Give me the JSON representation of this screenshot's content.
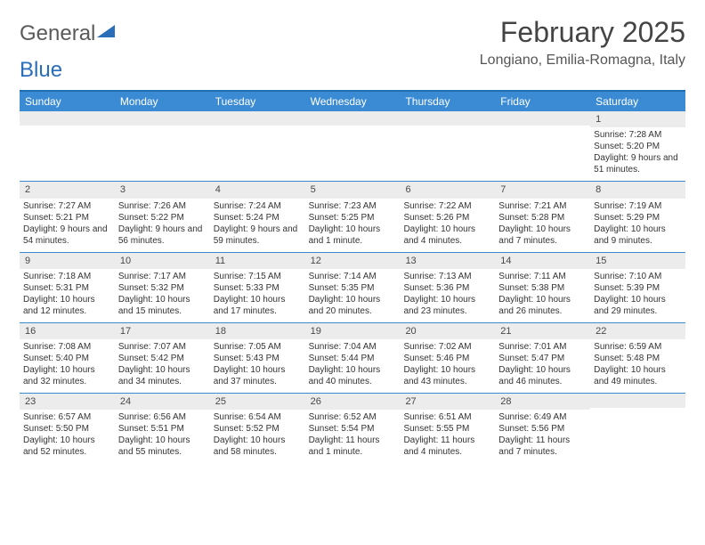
{
  "logo": {
    "text_general": "General",
    "text_blue": "Blue"
  },
  "title": "February 2025",
  "location": "Longiano, Emilia-Romagna, Italy",
  "colors": {
    "header_bar": "#3b8bd4",
    "header_border": "#1f6fb2",
    "daynum_bg": "#ececec",
    "text": "#333333",
    "logo_gray": "#5a5a5a",
    "logo_blue": "#2a6db8"
  },
  "day_headers": [
    "Sunday",
    "Monday",
    "Tuesday",
    "Wednesday",
    "Thursday",
    "Friday",
    "Saturday"
  ],
  "weeks": [
    [
      {
        "n": "",
        "sun": "",
        "set": "",
        "day": ""
      },
      {
        "n": "",
        "sun": "",
        "set": "",
        "day": ""
      },
      {
        "n": "",
        "sun": "",
        "set": "",
        "day": ""
      },
      {
        "n": "",
        "sun": "",
        "set": "",
        "day": ""
      },
      {
        "n": "",
        "sun": "",
        "set": "",
        "day": ""
      },
      {
        "n": "",
        "sun": "",
        "set": "",
        "day": ""
      },
      {
        "n": "1",
        "sun": "Sunrise: 7:28 AM",
        "set": "Sunset: 5:20 PM",
        "day": "Daylight: 9 hours and 51 minutes."
      }
    ],
    [
      {
        "n": "2",
        "sun": "Sunrise: 7:27 AM",
        "set": "Sunset: 5:21 PM",
        "day": "Daylight: 9 hours and 54 minutes."
      },
      {
        "n": "3",
        "sun": "Sunrise: 7:26 AM",
        "set": "Sunset: 5:22 PM",
        "day": "Daylight: 9 hours and 56 minutes."
      },
      {
        "n": "4",
        "sun": "Sunrise: 7:24 AM",
        "set": "Sunset: 5:24 PM",
        "day": "Daylight: 9 hours and 59 minutes."
      },
      {
        "n": "5",
        "sun": "Sunrise: 7:23 AM",
        "set": "Sunset: 5:25 PM",
        "day": "Daylight: 10 hours and 1 minute."
      },
      {
        "n": "6",
        "sun": "Sunrise: 7:22 AM",
        "set": "Sunset: 5:26 PM",
        "day": "Daylight: 10 hours and 4 minutes."
      },
      {
        "n": "7",
        "sun": "Sunrise: 7:21 AM",
        "set": "Sunset: 5:28 PM",
        "day": "Daylight: 10 hours and 7 minutes."
      },
      {
        "n": "8",
        "sun": "Sunrise: 7:19 AM",
        "set": "Sunset: 5:29 PM",
        "day": "Daylight: 10 hours and 9 minutes."
      }
    ],
    [
      {
        "n": "9",
        "sun": "Sunrise: 7:18 AM",
        "set": "Sunset: 5:31 PM",
        "day": "Daylight: 10 hours and 12 minutes."
      },
      {
        "n": "10",
        "sun": "Sunrise: 7:17 AM",
        "set": "Sunset: 5:32 PM",
        "day": "Daylight: 10 hours and 15 minutes."
      },
      {
        "n": "11",
        "sun": "Sunrise: 7:15 AM",
        "set": "Sunset: 5:33 PM",
        "day": "Daylight: 10 hours and 17 minutes."
      },
      {
        "n": "12",
        "sun": "Sunrise: 7:14 AM",
        "set": "Sunset: 5:35 PM",
        "day": "Daylight: 10 hours and 20 minutes."
      },
      {
        "n": "13",
        "sun": "Sunrise: 7:13 AM",
        "set": "Sunset: 5:36 PM",
        "day": "Daylight: 10 hours and 23 minutes."
      },
      {
        "n": "14",
        "sun": "Sunrise: 7:11 AM",
        "set": "Sunset: 5:38 PM",
        "day": "Daylight: 10 hours and 26 minutes."
      },
      {
        "n": "15",
        "sun": "Sunrise: 7:10 AM",
        "set": "Sunset: 5:39 PM",
        "day": "Daylight: 10 hours and 29 minutes."
      }
    ],
    [
      {
        "n": "16",
        "sun": "Sunrise: 7:08 AM",
        "set": "Sunset: 5:40 PM",
        "day": "Daylight: 10 hours and 32 minutes."
      },
      {
        "n": "17",
        "sun": "Sunrise: 7:07 AM",
        "set": "Sunset: 5:42 PM",
        "day": "Daylight: 10 hours and 34 minutes."
      },
      {
        "n": "18",
        "sun": "Sunrise: 7:05 AM",
        "set": "Sunset: 5:43 PM",
        "day": "Daylight: 10 hours and 37 minutes."
      },
      {
        "n": "19",
        "sun": "Sunrise: 7:04 AM",
        "set": "Sunset: 5:44 PM",
        "day": "Daylight: 10 hours and 40 minutes."
      },
      {
        "n": "20",
        "sun": "Sunrise: 7:02 AM",
        "set": "Sunset: 5:46 PM",
        "day": "Daylight: 10 hours and 43 minutes."
      },
      {
        "n": "21",
        "sun": "Sunrise: 7:01 AM",
        "set": "Sunset: 5:47 PM",
        "day": "Daylight: 10 hours and 46 minutes."
      },
      {
        "n": "22",
        "sun": "Sunrise: 6:59 AM",
        "set": "Sunset: 5:48 PM",
        "day": "Daylight: 10 hours and 49 minutes."
      }
    ],
    [
      {
        "n": "23",
        "sun": "Sunrise: 6:57 AM",
        "set": "Sunset: 5:50 PM",
        "day": "Daylight: 10 hours and 52 minutes."
      },
      {
        "n": "24",
        "sun": "Sunrise: 6:56 AM",
        "set": "Sunset: 5:51 PM",
        "day": "Daylight: 10 hours and 55 minutes."
      },
      {
        "n": "25",
        "sun": "Sunrise: 6:54 AM",
        "set": "Sunset: 5:52 PM",
        "day": "Daylight: 10 hours and 58 minutes."
      },
      {
        "n": "26",
        "sun": "Sunrise: 6:52 AM",
        "set": "Sunset: 5:54 PM",
        "day": "Daylight: 11 hours and 1 minute."
      },
      {
        "n": "27",
        "sun": "Sunrise: 6:51 AM",
        "set": "Sunset: 5:55 PM",
        "day": "Daylight: 11 hours and 4 minutes."
      },
      {
        "n": "28",
        "sun": "Sunrise: 6:49 AM",
        "set": "Sunset: 5:56 PM",
        "day": "Daylight: 11 hours and 7 minutes."
      },
      {
        "n": "",
        "sun": "",
        "set": "",
        "day": ""
      }
    ]
  ]
}
